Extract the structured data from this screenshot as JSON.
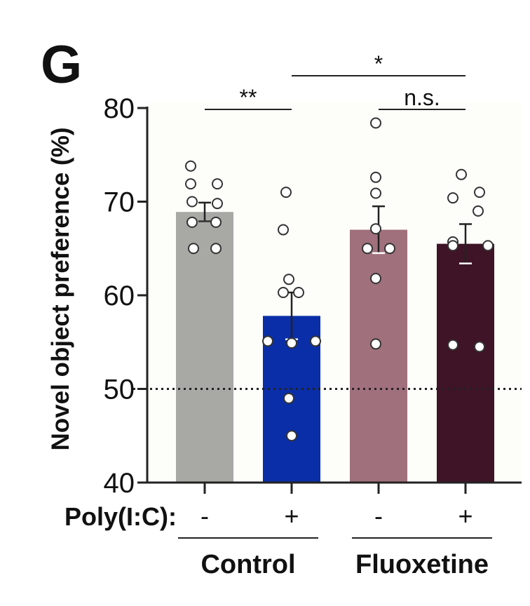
{
  "panel_label": "G",
  "chart_data": {
    "type": "bar",
    "ylabel": "Novel object preference (%)",
    "ylim": [
      40,
      80
    ],
    "yticks": [
      "40",
      "50",
      "60",
      "70",
      "80"
    ],
    "reference_line": 50,
    "row_label": "Poly(I:C):",
    "categories": [
      "-",
      "+",
      "-",
      "+"
    ],
    "groups": [
      {
        "label": "Control",
        "members": [
          0,
          1
        ]
      },
      {
        "label": "Fluoxetine",
        "members": [
          2,
          3
        ]
      }
    ],
    "bars": [
      {
        "poly_ic": "-",
        "group": "Control",
        "mean": 68.9,
        "sem": 1.0,
        "color": "#a8a8a4",
        "points": [
          73.8,
          71.9,
          71.9,
          70.0,
          69.8,
          67.8,
          67.8,
          65.0,
          65.0
        ]
      },
      {
        "poly_ic": "+",
        "group": "Control",
        "mean": 57.8,
        "sem": 2.5,
        "color": "#0a2ea8",
        "points": [
          71.0,
          67.0,
          61.7,
          60.3,
          60.3,
          55.1,
          55.1,
          54.9,
          49.0,
          45.0
        ]
      },
      {
        "poly_ic": "-",
        "group": "Fluoxetine",
        "mean": 67.0,
        "sem": 2.5,
        "color": "#a0707c",
        "points": [
          78.4,
          72.6,
          70.9,
          67.1,
          65.0,
          65.0,
          61.8,
          54.8
        ]
      },
      {
        "poly_ic": "+",
        "group": "Fluoxetine",
        "mean": 65.5,
        "sem": 2.1,
        "color": "#3e1426",
        "points": [
          72.9,
          71.0,
          70.4,
          69.0,
          65.7,
          65.3,
          65.3,
          54.7,
          54.5
        ]
      }
    ],
    "significance": [
      {
        "from": 0,
        "to": 1,
        "label": "**",
        "level": 1
      },
      {
        "from": 2,
        "to": 3,
        "label": "n.s.",
        "level": 1
      },
      {
        "from": 1,
        "to": 3,
        "label": "*",
        "level": 2
      }
    ]
  }
}
